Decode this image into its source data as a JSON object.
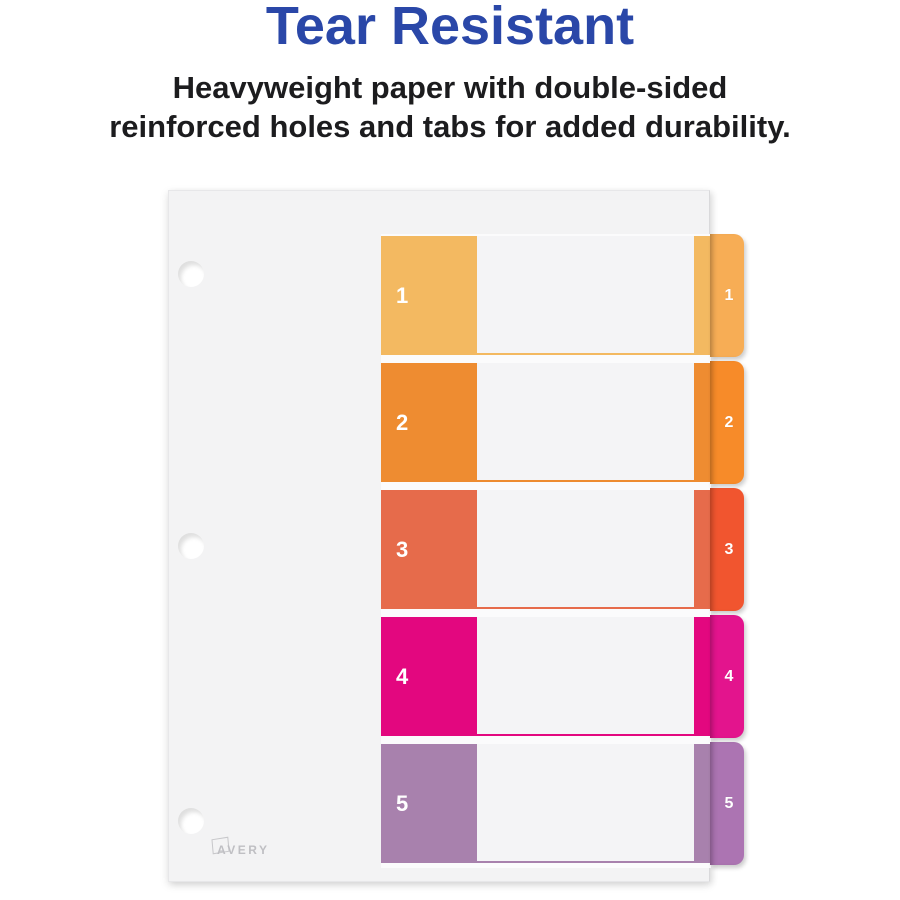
{
  "header": {
    "title": "Tear Resistant",
    "title_color": "#2a47a8",
    "subtitle_line1": "Heavyweight paper with double-sided",
    "subtitle_line2": "reinforced holes and tabs for added durability."
  },
  "sheet": {
    "brand_logo": "AVERY",
    "hole_count": 3,
    "rows": [
      {
        "number": "1",
        "block_color": "#f3b961",
        "tab_color": "#f7ad55"
      },
      {
        "number": "2",
        "block_color": "#ee8c31",
        "tab_color": "#f78b29"
      },
      {
        "number": "3",
        "block_color": "#e66b4b",
        "tab_color": "#f1552f"
      },
      {
        "number": "4",
        "block_color": "#e3077f",
        "tab_color": "#e3148d"
      },
      {
        "number": "5",
        "block_color": "#a881ad",
        "tab_color": "#ac74b2"
      }
    ]
  }
}
